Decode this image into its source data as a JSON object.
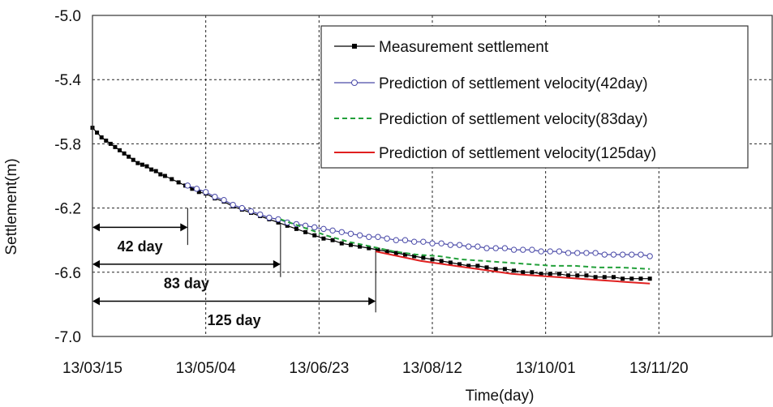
{
  "chart_data": {
    "type": "line",
    "title": "",
    "xlabel": "Time(day)",
    "ylabel": "Settlement(m)",
    "ylim": [
      -7.0,
      -5.0
    ],
    "y_ticks": [
      "-5.0",
      "-5.4",
      "-5.8",
      "-6.2",
      "-6.6",
      "-7.0"
    ],
    "y_tick_values": [
      -5.0,
      -5.4,
      -5.8,
      -6.2,
      -6.6,
      -7.0
    ],
    "x_ticks": [
      "13/03/15",
      "13/05/04",
      "13/06/23",
      "13/08/12",
      "13/10/01",
      "13/11/20"
    ],
    "x_tick_values": [
      "2013-03-15",
      "2013-05-04",
      "2013-06-23",
      "2013-08-12",
      "2013-10-01",
      "2013-11-20"
    ],
    "xlim": [
      "2013-03-15",
      "2014-01-09"
    ],
    "grid": true,
    "legend_position": "top-right",
    "series": [
      {
        "name": "Measurement settlement",
        "color": "#000000",
        "style": "solid",
        "marker": "square",
        "x": [
          "2013-03-15",
          "2013-03-17",
          "2013-03-19",
          "2013-03-21",
          "2013-03-23",
          "2013-03-25",
          "2013-03-27",
          "2013-03-29",
          "2013-03-31",
          "2013-04-02",
          "2013-04-04",
          "2013-04-06",
          "2013-04-08",
          "2013-04-10",
          "2013-04-12",
          "2013-04-14",
          "2013-04-16",
          "2013-04-19",
          "2013-04-22",
          "2013-04-25",
          "2013-04-28",
          "2013-05-01",
          "2013-05-04",
          "2013-05-08",
          "2013-05-12",
          "2013-05-16",
          "2013-05-20",
          "2013-05-24",
          "2013-05-28",
          "2013-06-01",
          "2013-06-05",
          "2013-06-09",
          "2013-06-13",
          "2013-06-17",
          "2013-06-21",
          "2013-06-25",
          "2013-06-29",
          "2013-07-03",
          "2013-07-07",
          "2013-07-11",
          "2013-07-15",
          "2013-07-19",
          "2013-07-23",
          "2013-07-27",
          "2013-07-31",
          "2013-08-04",
          "2013-08-08",
          "2013-08-12",
          "2013-08-16",
          "2013-08-20",
          "2013-08-24",
          "2013-08-28",
          "2013-09-01",
          "2013-09-05",
          "2013-09-09",
          "2013-09-13",
          "2013-09-17",
          "2013-09-21",
          "2013-09-25",
          "2013-09-29",
          "2013-10-03",
          "2013-10-07",
          "2013-10-11",
          "2013-10-15",
          "2013-10-19",
          "2013-10-23",
          "2013-10-27",
          "2013-10-31",
          "2013-11-04",
          "2013-11-08",
          "2013-11-12",
          "2013-11-16"
        ],
        "y": [
          -5.7,
          -5.73,
          -5.76,
          -5.78,
          -5.8,
          -5.82,
          -5.84,
          -5.86,
          -5.88,
          -5.9,
          -5.92,
          -5.93,
          -5.94,
          -5.96,
          -5.97,
          -5.99,
          -6.0,
          -6.02,
          -6.04,
          -6.06,
          -6.08,
          -6.1,
          -6.11,
          -6.14,
          -6.16,
          -6.19,
          -6.21,
          -6.23,
          -6.25,
          -6.27,
          -6.29,
          -6.31,
          -6.33,
          -6.35,
          -6.37,
          -6.39,
          -6.4,
          -6.42,
          -6.43,
          -6.44,
          -6.45,
          -6.46,
          -6.47,
          -6.48,
          -6.49,
          -6.5,
          -6.51,
          -6.52,
          -6.53,
          -6.54,
          -6.55,
          -6.56,
          -6.56,
          -6.57,
          -6.58,
          -6.58,
          -6.59,
          -6.6,
          -6.6,
          -6.61,
          -6.61,
          -6.61,
          -6.62,
          -6.62,
          -6.62,
          -6.63,
          -6.63,
          -6.63,
          -6.64,
          -6.64,
          -6.64,
          -6.64
        ]
      },
      {
        "name": "Prediction of settlement velocity(42day)",
        "color": "#4a4aa8",
        "style": "solid",
        "marker": "circle",
        "x": [
          "2013-04-26",
          "2013-04-30",
          "2013-05-04",
          "2013-05-08",
          "2013-05-12",
          "2013-05-16",
          "2013-05-20",
          "2013-05-24",
          "2013-05-28",
          "2013-06-01",
          "2013-06-05",
          "2013-06-09",
          "2013-06-13",
          "2013-06-17",
          "2013-06-21",
          "2013-06-25",
          "2013-06-29",
          "2013-07-03",
          "2013-07-07",
          "2013-07-11",
          "2013-07-15",
          "2013-07-19",
          "2013-07-23",
          "2013-07-27",
          "2013-07-31",
          "2013-08-04",
          "2013-08-08",
          "2013-08-12",
          "2013-08-16",
          "2013-08-20",
          "2013-08-24",
          "2013-08-28",
          "2013-09-01",
          "2013-09-05",
          "2013-09-09",
          "2013-09-13",
          "2013-09-17",
          "2013-09-21",
          "2013-09-25",
          "2013-09-29",
          "2013-10-03",
          "2013-10-07",
          "2013-10-11",
          "2013-10-15",
          "2013-10-19",
          "2013-10-23",
          "2013-10-27",
          "2013-10-31",
          "2013-11-04",
          "2013-11-08",
          "2013-11-12",
          "2013-11-16"
        ],
        "y": [
          -6.06,
          -6.08,
          -6.1,
          -6.13,
          -6.15,
          -6.18,
          -6.2,
          -6.22,
          -6.24,
          -6.26,
          -6.27,
          -6.29,
          -6.3,
          -6.31,
          -6.32,
          -6.33,
          -6.34,
          -6.35,
          -6.36,
          -6.37,
          -6.38,
          -6.38,
          -6.39,
          -6.4,
          -6.4,
          -6.41,
          -6.41,
          -6.42,
          -6.42,
          -6.43,
          -6.43,
          -6.44,
          -6.44,
          -6.45,
          -6.45,
          -6.45,
          -6.46,
          -6.46,
          -6.46,
          -6.47,
          -6.47,
          -6.47,
          -6.48,
          -6.48,
          -6.48,
          -6.48,
          -6.49,
          -6.49,
          -6.49,
          -6.49,
          -6.49,
          -6.5
        ]
      },
      {
        "name": "Prediction of settlement velocity(83day)",
        "color": "#22a03a",
        "style": "dashed",
        "marker": "none",
        "x": [
          "2013-06-06",
          "2013-06-16",
          "2013-06-26",
          "2013-07-06",
          "2013-07-16",
          "2013-07-26",
          "2013-08-05",
          "2013-08-15",
          "2013-08-25",
          "2013-09-04",
          "2013-09-14",
          "2013-09-24",
          "2013-10-04",
          "2013-10-14",
          "2013-10-24",
          "2013-11-03",
          "2013-11-16"
        ],
        "y": [
          -6.27,
          -6.32,
          -6.37,
          -6.41,
          -6.44,
          -6.47,
          -6.49,
          -6.5,
          -6.52,
          -6.53,
          -6.54,
          -6.55,
          -6.56,
          -6.56,
          -6.57,
          -6.57,
          -6.58
        ]
      },
      {
        "name": "Prediction of settlement velocity(125day)",
        "color": "#e02020",
        "style": "solid",
        "marker": "none",
        "x": [
          "2013-07-18",
          "2013-07-28",
          "2013-08-07",
          "2013-08-17",
          "2013-08-27",
          "2013-09-06",
          "2013-09-16",
          "2013-09-26",
          "2013-10-06",
          "2013-10-16",
          "2013-10-26",
          "2013-11-05",
          "2013-11-16"
        ],
        "y": [
          -6.47,
          -6.5,
          -6.53,
          -6.55,
          -6.57,
          -6.59,
          -6.61,
          -6.62,
          -6.63,
          -6.64,
          -6.65,
          -6.66,
          -6.67
        ]
      }
    ],
    "annotations": [
      {
        "label": "42 day",
        "days": 42
      },
      {
        "label": "83 day",
        "days": 83
      },
      {
        "label": "125 day",
        "days": 125
      }
    ]
  }
}
